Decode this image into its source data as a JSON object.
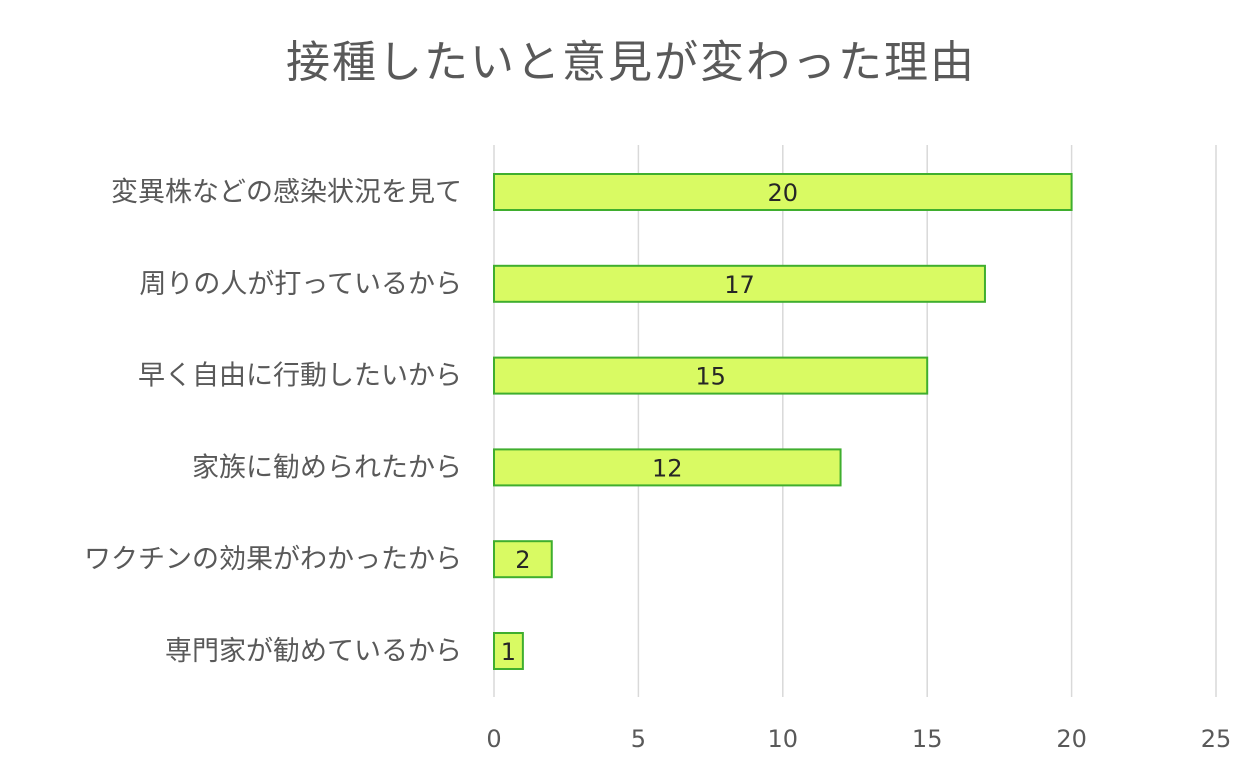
{
  "chart_data": {
    "type": "bar",
    "orientation": "horizontal",
    "title": "接種したいと意見が変わった理由",
    "categories": [
      "変異株などの感染状況を見て",
      "周りの人が打っているから",
      "早く自由に行動したいから",
      "家族に勧められたから",
      "ワクチンの効果がわかったから",
      "専門家が勧めているから"
    ],
    "values": [
      20,
      17,
      15,
      12,
      2,
      1
    ],
    "xlim": [
      0,
      25
    ],
    "xticks": [
      0,
      5,
      10,
      15,
      20,
      25
    ],
    "grid": true,
    "data_labels": true,
    "colors": {
      "bar_fill": "#d9fa63",
      "bar_stroke": "#3fae2e",
      "grid": "#d9d9d9",
      "text": "#595959"
    }
  }
}
